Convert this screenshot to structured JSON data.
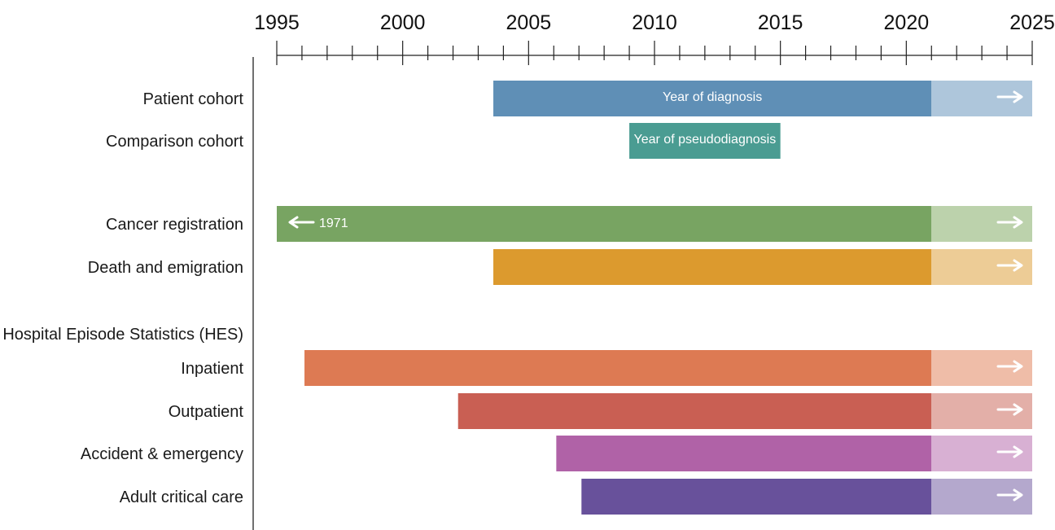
{
  "chart_data": {
    "type": "gantt-timeline",
    "x_axis": {
      "range": [
        1995,
        2025
      ],
      "major_ticks": [
        1995,
        2000,
        2005,
        2010,
        2015,
        2020,
        2025
      ],
      "minor_tick_step": 1
    },
    "rows": [
      {
        "label": "Patient cohort",
        "start": 2003.6,
        "end": 2021,
        "continues_to": 2025,
        "color": "#5f8fb6",
        "ext_color": "#aec6db",
        "bar_label": "Year of diagnosis",
        "arrow_right": true
      },
      {
        "label": "Comparison cohort",
        "start": 2009,
        "end": 2015,
        "color": "#4a9c92",
        "bar_label": "Year of pseudodiagnosis"
      },
      {
        "label": "Cancer registration",
        "start": 1995,
        "end": 2021,
        "continues_to": 2025,
        "color": "#78a462",
        "ext_color": "#bcd2ac",
        "left_label": "1971",
        "arrow_left": true,
        "arrow_right": true
      },
      {
        "label": "Death and emigration",
        "start": 2003.6,
        "end": 2021,
        "continues_to": 2025,
        "color": "#dc9a2e",
        "ext_color": "#edcc96",
        "arrow_right": true
      },
      {
        "label": "Hospital Episode Statistics (HES)",
        "heading": true
      },
      {
        "label": "Inpatient",
        "start": 1996.1,
        "end": 2021,
        "continues_to": 2025,
        "color": "#dd7a53",
        "ext_color": "#efbda8",
        "arrow_right": true
      },
      {
        "label": "Outpatient",
        "start": 2002.2,
        "end": 2021,
        "continues_to": 2025,
        "color": "#c95f53",
        "ext_color": "#e3afa8",
        "arrow_right": true
      },
      {
        "label": "Accident & emergency",
        "start": 2006.1,
        "end": 2021,
        "continues_to": 2025,
        "color": "#b062a7",
        "ext_color": "#d8b0d3",
        "arrow_right": true
      },
      {
        "label": "Adult critical care",
        "start": 2007.1,
        "end": 2021,
        "continues_to": 2025,
        "color": "#68519b",
        "ext_color": "#b4a8cd",
        "arrow_right": true
      }
    ]
  }
}
